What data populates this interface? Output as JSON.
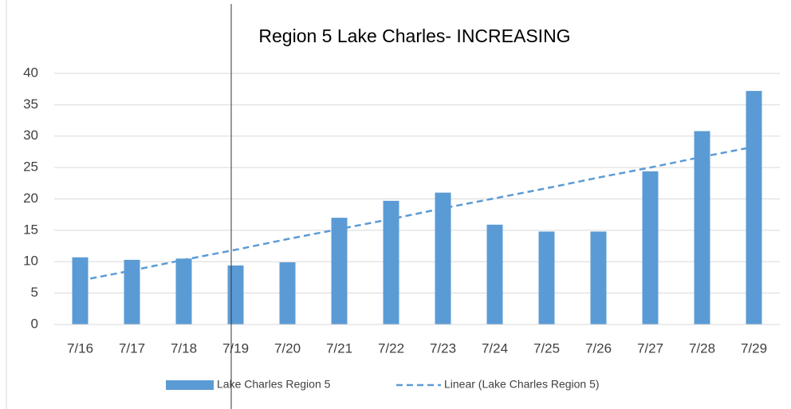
{
  "chart_data": {
    "type": "bar",
    "title": "Region 5 Lake Charles- INCREASING",
    "categories": [
      "7/16",
      "7/17",
      "7/18",
      "7/19",
      "7/20",
      "7/21",
      "7/22",
      "7/23",
      "7/24",
      "7/25",
      "7/26",
      "7/27",
      "7/28",
      "7/29"
    ],
    "series": [
      {
        "name": "Lake Charles Region 5",
        "type": "bar",
        "color": "#5b9bd5",
        "values": [
          10.7,
          10.3,
          10.5,
          9.4,
          9.9,
          17,
          19.7,
          21,
          15.9,
          14.8,
          14.8,
          24.4,
          30.8,
          37.2
        ]
      },
      {
        "name": "Linear (Lake Charles Region 5)",
        "type": "line",
        "dashed": true,
        "color": "#5b9bd5",
        "values": [
          7,
          8.6,
          10.3,
          11.9,
          13.6,
          15.2,
          16.8,
          18.5,
          20.1,
          21.7,
          23.4,
          25.0,
          26.7,
          28.3
        ]
      }
    ],
    "ylim": [
      0,
      40
    ],
    "yticks": [
      0,
      5,
      10,
      15,
      20,
      25,
      30,
      35,
      40
    ],
    "grid": true,
    "legend": "bottom"
  }
}
